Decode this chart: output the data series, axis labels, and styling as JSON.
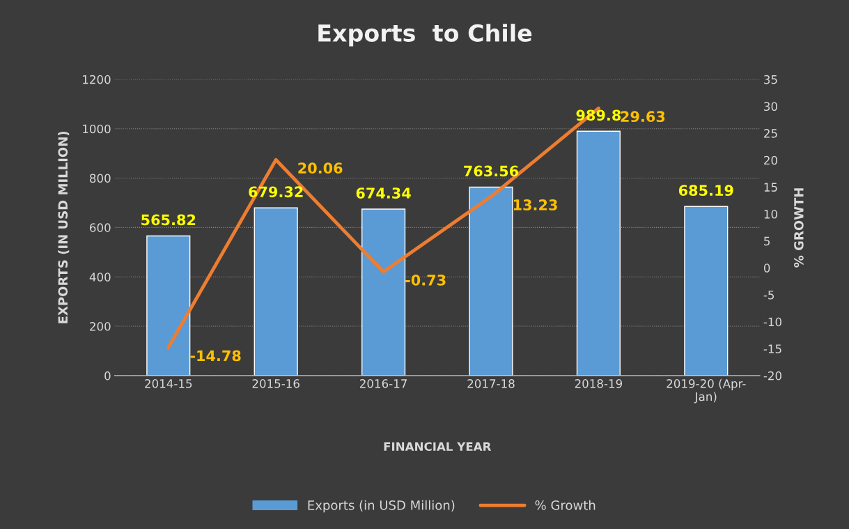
{
  "chart_data": {
    "type": "bar",
    "title": "Exports  to Chile",
    "xlabel": "FINANCIAL YEAR",
    "ylabel": "EXPORTS (IN USD MILLION)",
    "y2label": "% GROWTH",
    "categories": [
      "2014-15",
      "2015-16",
      "2016-17",
      "2017-18",
      "2018-19",
      "2019-20 (Apr-\nJan)"
    ],
    "series": [
      {
        "name": "Exports (in USD Million)",
        "color": "#5b9bd5",
        "values": [
          565.82,
          679.32,
          674.34,
          763.56,
          989.8,
          685.19
        ]
      },
      {
        "name": "% Growth",
        "type": "line",
        "axis": "y2",
        "color": "#ed7d31",
        "values": [
          -14.78,
          20.06,
          -0.73,
          13.23,
          29.63,
          null
        ]
      }
    ],
    "ylim": [
      0,
      1200
    ],
    "yticks": [
      0,
      200,
      400,
      600,
      800,
      1000,
      1200
    ],
    "y2lim": [
      -20,
      35
    ],
    "y2ticks": [
      -20,
      -15,
      -10,
      -5,
      0,
      5,
      10,
      15,
      20,
      25,
      30,
      35
    ],
    "grid": "y",
    "legend": "bottom",
    "data_labels": true,
    "marker": "none",
    "line_style": "solid"
  }
}
